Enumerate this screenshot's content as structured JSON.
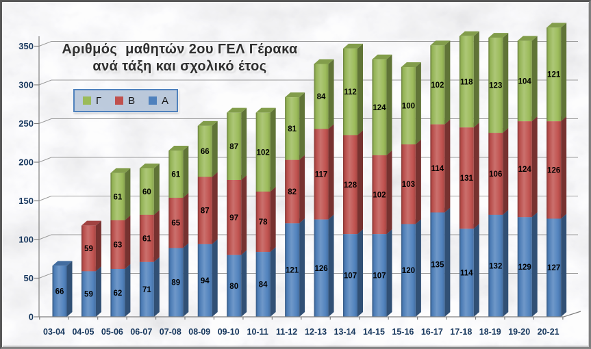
{
  "chart_data": {
    "type": "bar",
    "stacked": true,
    "style": "3d",
    "background": "marble-texture",
    "title_lines": [
      "Αριθμός  μαθητών 2ου ΓΕΛ Γέρακα",
      "ανά τάξη και σχολικό έτος"
    ],
    "categories": [
      "03-04",
      "04-05",
      "05-06",
      "06-07",
      "07-08",
      "08-09",
      "09-10",
      "10-11",
      "11-12",
      "12-13",
      "13-14",
      "14-15",
      "15-16",
      "16-17",
      "17-18",
      "18-19",
      "19-20",
      "20-21"
    ],
    "series": [
      {
        "name": "Α",
        "color": "#4f81bd",
        "values": [
          66,
          59,
          62,
          71,
          89,
          94,
          80,
          84,
          121,
          126,
          107,
          107,
          120,
          135,
          114,
          132,
          129,
          127
        ]
      },
      {
        "name": "Β",
        "color": "#c0504d",
        "values": [
          0,
          59,
          63,
          61,
          65,
          87,
          97,
          78,
          82,
          117,
          128,
          102,
          103,
          114,
          131,
          106,
          124,
          126
        ]
      },
      {
        "name": "Γ",
        "color": "#9bbb59",
        "values": [
          0,
          0,
          61,
          60,
          61,
          66,
          87,
          102,
          81,
          84,
          112,
          124,
          100,
          102,
          118,
          123,
          104,
          121
        ]
      }
    ],
    "legend": {
      "position": "inside-top-left",
      "entries": [
        {
          "label": "Γ",
          "color": "#9bbb59"
        },
        {
          "label": "Β",
          "color": "#c0504d"
        },
        {
          "label": "Α",
          "color": "#4f81bd"
        }
      ]
    },
    "y_axis": {
      "ticks": [
        0,
        50,
        100,
        150,
        200,
        250,
        300,
        350
      ],
      "max": 380
    },
    "x_axis": {
      "label_color": "#17375d"
    },
    "data_labels": true,
    "grid": true,
    "colors": {
      "axis_label": "#17375d",
      "gridline": "#9a9a9a",
      "axis_line": "#7f7f7f",
      "data_label": "#000000",
      "title": "#2f2f2f",
      "legend_border": "#4f81bd"
    }
  }
}
